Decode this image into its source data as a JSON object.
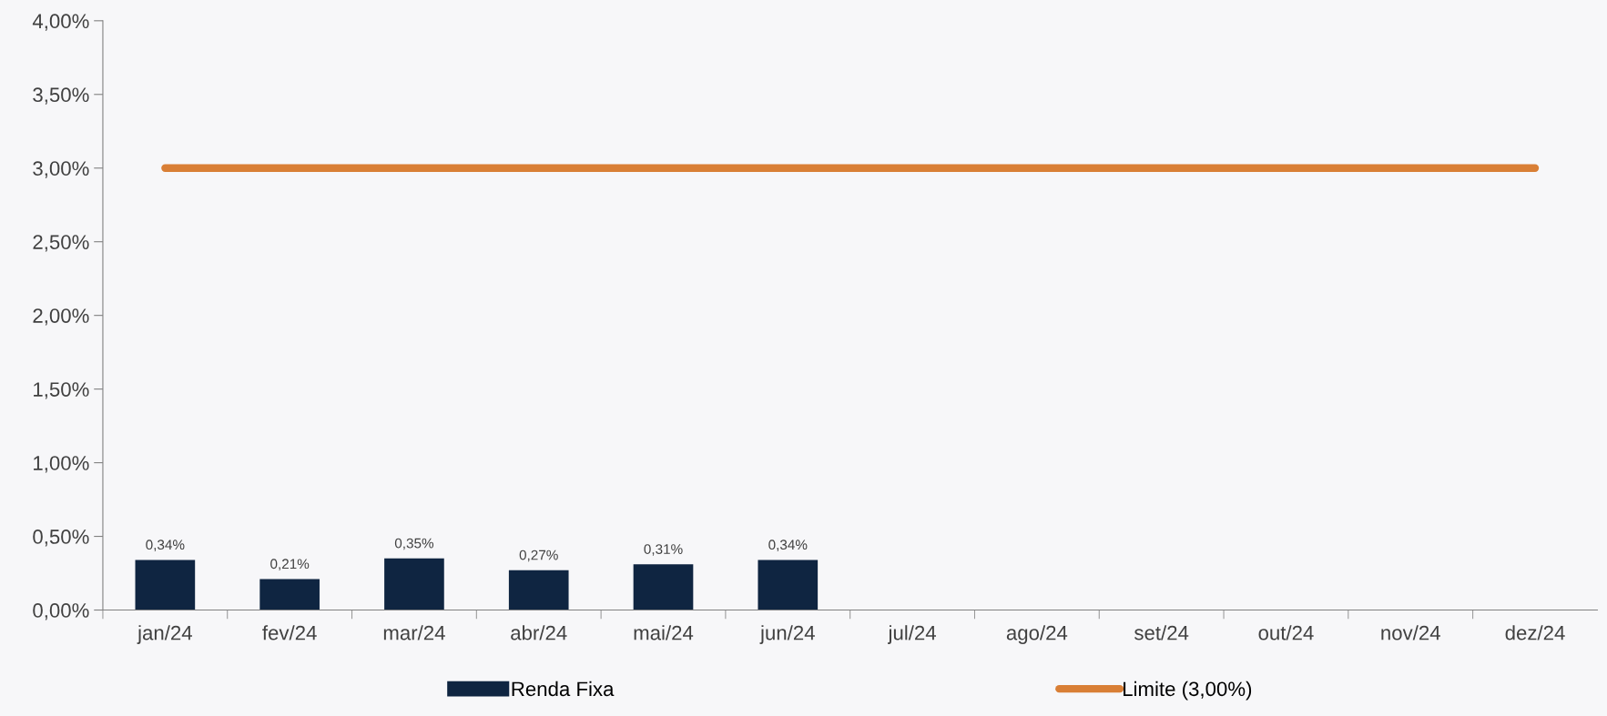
{
  "chart_data": {
    "type": "bar",
    "categories": [
      "jan/24",
      "fev/24",
      "mar/24",
      "abr/24",
      "mai/24",
      "jun/24",
      "jul/24",
      "ago/24",
      "set/24",
      "out/24",
      "nov/24",
      "dez/24"
    ],
    "series": [
      {
        "name": "Renda Fixa",
        "color": "#0f2541",
        "values": [
          0.34,
          0.21,
          0.35,
          0.27,
          0.31,
          0.34,
          null,
          null,
          null,
          null,
          null,
          null
        ],
        "value_labels": [
          "0,34%",
          "0,21%",
          "0,35%",
          "0,27%",
          "0,31%",
          "0,34%",
          null,
          null,
          null,
          null,
          null,
          null
        ]
      },
      {
        "name": "Limite (3,00%)",
        "type": "line",
        "color": "#d97f36",
        "values": [
          3,
          3,
          3,
          3,
          3,
          3,
          3,
          3,
          3,
          3,
          3,
          3
        ]
      }
    ],
    "ylim": [
      0,
      4
    ],
    "yticks": [
      {
        "value": 0,
        "label": "0,00%"
      },
      {
        "value": 0.5,
        "label": "0,50%"
      },
      {
        "value": 1,
        "label": "1,00%"
      },
      {
        "value": 1.5,
        "label": "1,50%"
      },
      {
        "value": 2,
        "label": "2,00%"
      },
      {
        "value": 2.5,
        "label": "2,50%"
      },
      {
        "value": 3,
        "label": "3,00%"
      },
      {
        "value": 3.5,
        "label": "3,50%"
      },
      {
        "value": 4,
        "label": "4,00%"
      }
    ],
    "grid": false,
    "legend": "bottom",
    "marker": "none",
    "line_style": "solid"
  }
}
